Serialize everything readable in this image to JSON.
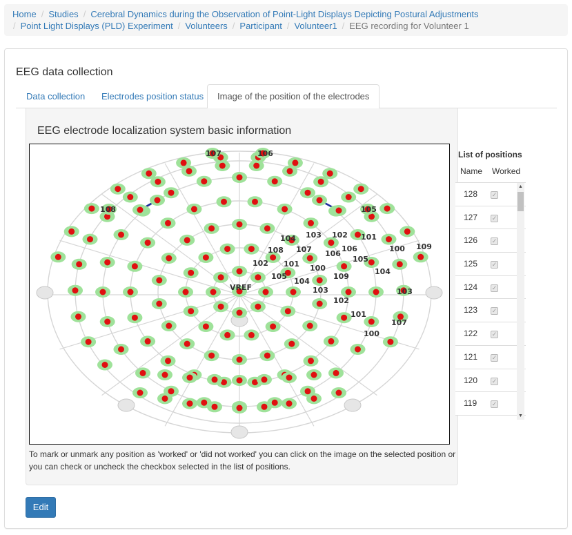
{
  "breadcrumb": {
    "home": "Home",
    "studies": "Studies",
    "study": "Cerebral Dynamics during the Observation of Point-Light Displays Depicting Postural Adjustments",
    "experiment": "Point Light Displays (PLD) Experiment",
    "volunteers": "Volunteers",
    "participant": "Participant",
    "volunteer": "Volunteer1",
    "current": "EEG recording for Volunteer 1",
    "separator": "/"
  },
  "panel": {
    "title": "EEG data collection"
  },
  "tabs": [
    {
      "label": "Data collection",
      "active": false
    },
    {
      "label": "Electrodes position status",
      "active": false
    },
    {
      "label": "Image of the position of the electrodes",
      "active": true
    }
  ],
  "content": {
    "title": "EEG electrode localization system basic information",
    "help_text": "To mark or unmark any position as 'worked' or 'did not worked' you can click on the image on the selected position or you can check or uncheck the checkbox selected in the list of positions.",
    "map_labels": {
      "vref": "VREF",
      "top_left": "107",
      "top_right": "106",
      "left_outer": "108",
      "right_outer": "105",
      "r1": "104",
      "r2": "103",
      "r3": "102",
      "r4": "101",
      "r5": "107",
      "r6": "108",
      "r7": "106",
      "r8": "105",
      "r9": "102",
      "r10": "101",
      "r11": "100",
      "r12": "109",
      "r13": "104",
      "r14": "103",
      "r15": "105",
      "r16": "104",
      "r17": "100",
      "r18": "103",
      "r19": "102",
      "r20": "101",
      "r21": "107",
      "r22": "100",
      "r23": "106",
      "r24": "109"
    }
  },
  "positions": {
    "title": "List of positions",
    "col_name": "Name",
    "col_worked": "Worked",
    "rows": [
      {
        "name": "128",
        "worked": true
      },
      {
        "name": "127",
        "worked": true
      },
      {
        "name": "126",
        "worked": true
      },
      {
        "name": "125",
        "worked": true
      },
      {
        "name": "124",
        "worked": true
      },
      {
        "name": "123",
        "worked": true
      },
      {
        "name": "122",
        "worked": true
      },
      {
        "name": "121",
        "worked": true
      },
      {
        "name": "120",
        "worked": true
      },
      {
        "name": "119",
        "worked": true
      }
    ],
    "check_glyph": "✓"
  },
  "actions": {
    "edit_label": "Edit"
  },
  "colors": {
    "link": "#337ab7",
    "electrode_halo": "#9fe29a",
    "electrode_core": "#e01010",
    "mesh_line": "#d6d6d6",
    "highlight_line": "#1a2a9a",
    "primary_button": "#337ab7"
  },
  "icons": {
    "scroll_up": "▲",
    "scroll_down": "▼"
  }
}
